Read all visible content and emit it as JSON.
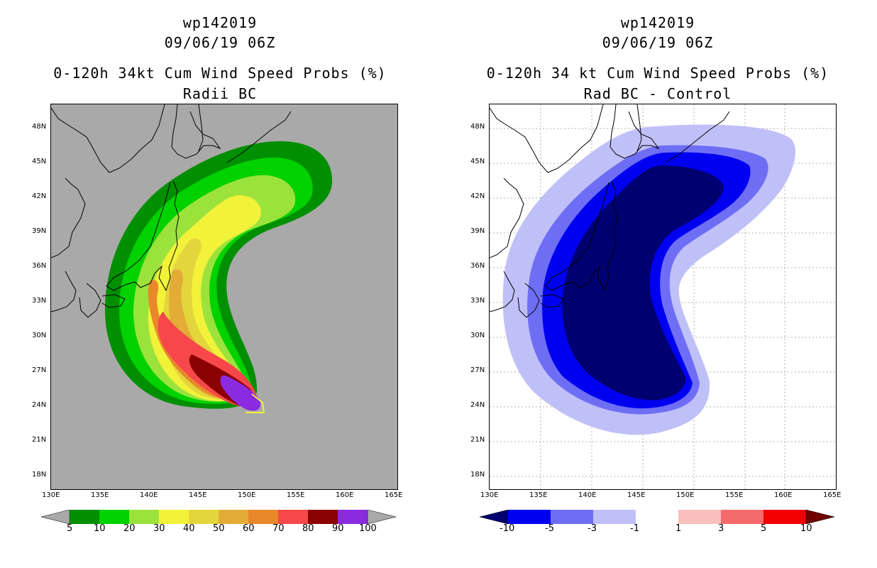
{
  "left": {
    "title1": "wp142019",
    "title2": "09/06/19 06Z",
    "title3": "0-120h 34kt Cum Wind Speed Probs (%)",
    "title4": "Radii BC",
    "background_color": "#a9a9a9",
    "colorbar": {
      "labels": [
        "5",
        "10",
        "20",
        "30",
        "40",
        "50",
        "60",
        "70",
        "80",
        "90",
        "100"
      ],
      "colors": [
        "#008f00",
        "#00d200",
        "#9be33c",
        "#f2f23a",
        "#e5d53c",
        "#e2ac37",
        "#e9882a",
        "#f6484a",
        "#8b0000",
        "#8a2be2"
      ],
      "under_color": "#a9a9a9",
      "over_color": "#a9a9a9"
    }
  },
  "right": {
    "title1": "wp142019",
    "title2": "09/06/19 06Z",
    "title3": "0-120h 34 kt Cum Wind Speed Probs (%)",
    "title4": "Rad BC - Control",
    "background_color": "#ffffff",
    "colorbar": {
      "labels": [
        "-10",
        "-5",
        "-3",
        "-1",
        "1",
        "3",
        "5",
        "10"
      ],
      "colors": [
        "#0000f0",
        "#6e6ef5",
        "#c0c0f8",
        "#ffffff",
        "#f9bfbf",
        "#f56a6a",
        "#f00000"
      ],
      "under_color": "#000070",
      "over_color": "#700000"
    }
  },
  "axes": {
    "lat_labels": [
      "48N",
      "45N",
      "42N",
      "39N",
      "36N",
      "33N",
      "30N",
      "27N",
      "24N",
      "21N",
      "18N"
    ],
    "lon_labels": [
      "130E",
      "135E",
      "140E",
      "145E",
      "150E",
      "155E",
      "160E",
      "165E"
    ]
  },
  "colors": {
    "land_outline": "#000000",
    "grid": "#b0b0b0"
  }
}
